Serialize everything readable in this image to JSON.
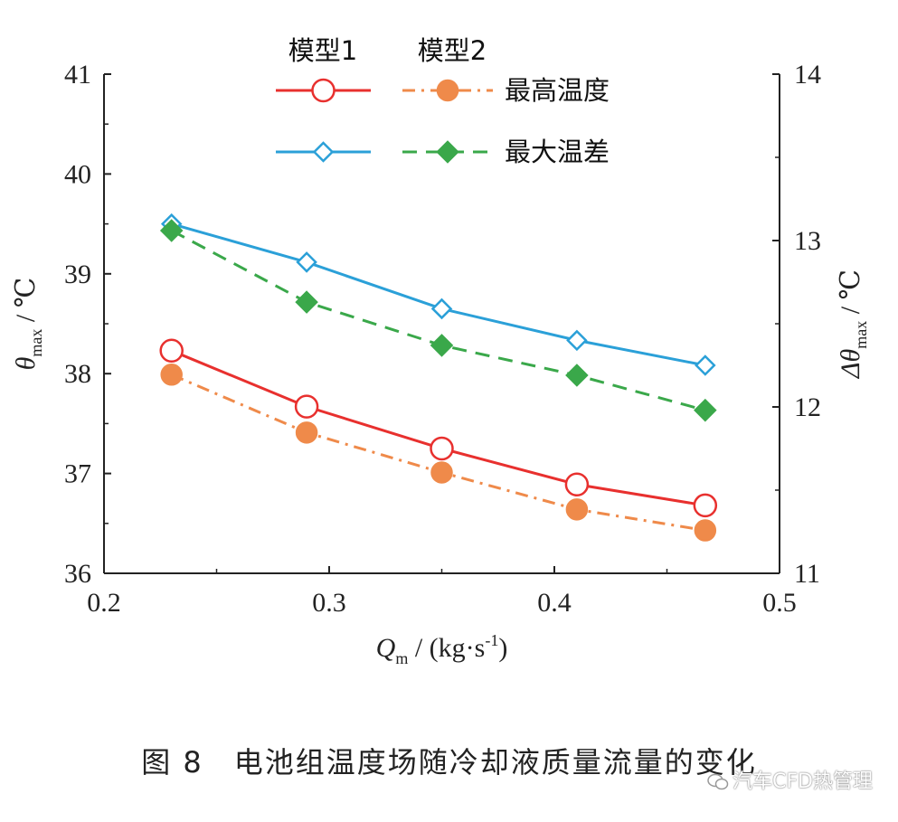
{
  "chart_data": {
    "type": "line",
    "x": [
      0.23,
      0.29,
      0.35,
      0.41,
      0.467
    ],
    "xlim": [
      0.2,
      0.5
    ],
    "xticks": [
      "0.2",
      "0.3",
      "0.4",
      "0.5"
    ],
    "xlabel": {
      "sym": "Q",
      "sub": "m",
      "unit": " / (kg·s",
      "sup": "-1",
      "close": ")"
    },
    "ylim_left": [
      36,
      41
    ],
    "yticks_left": [
      "36",
      "37",
      "38",
      "39",
      "40",
      "41"
    ],
    "ylabel_left": {
      "sym": "θ",
      "sub": "max",
      "unit": " / ℃"
    },
    "ylim_right": [
      11,
      14
    ],
    "yticks_right": [
      "11",
      "12",
      "13",
      "14"
    ],
    "ylabel_right": {
      "sym": "Δθ",
      "sub": "max",
      "unit": " / ℃"
    },
    "legend_headers": [
      "模型1",
      "模型2"
    ],
    "legend_rows": [
      "最高温度",
      "最大温差"
    ],
    "series": [
      {
        "name": "模型1 最高温度",
        "axis": "left",
        "color": "#e8302e",
        "style": "solid",
        "marker": "circle-open",
        "values": [
          38.23,
          37.67,
          37.25,
          36.89,
          36.68
        ]
      },
      {
        "name": "模型2 最高温度",
        "axis": "left",
        "color": "#ef8a4a",
        "style": "dashdot",
        "marker": "circle-filled",
        "values": [
          37.99,
          37.41,
          37.01,
          36.64,
          36.43
        ]
      },
      {
        "name": "模型1 最大温差",
        "axis": "right",
        "color": "#2ba0d8",
        "style": "solid",
        "marker": "diamond-open",
        "values": [
          13.1,
          12.87,
          12.59,
          12.4,
          12.25
        ]
      },
      {
        "name": "模型2 最大温差",
        "axis": "right",
        "color": "#3aa84a",
        "style": "dashed",
        "marker": "diamond-filled",
        "values": [
          13.06,
          12.63,
          12.37,
          12.19,
          11.98
        ]
      }
    ]
  },
  "caption": "图 8　电池组温度场随冷却液质量流量的变化",
  "watermark": "汽车CFD热管理"
}
